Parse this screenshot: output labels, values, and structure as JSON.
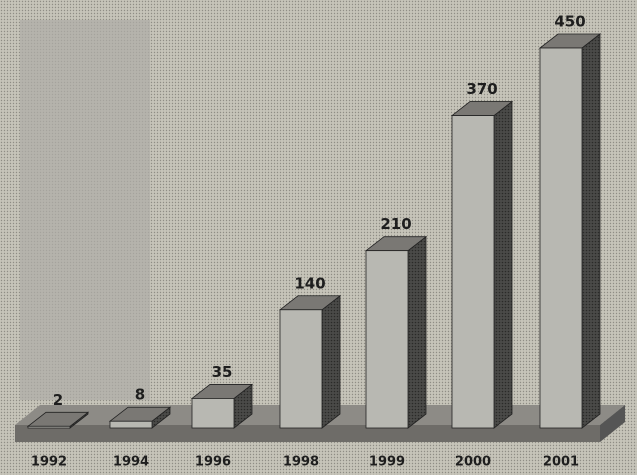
{
  "chart_data": {
    "type": "bar3d",
    "categories": [
      "1992",
      "1994",
      "1996",
      "1998",
      "1999",
      "2000",
      "2001"
    ],
    "values": [
      2,
      8,
      35,
      140,
      210,
      370,
      450
    ],
    "color": "#b8b8b2"
  }
}
